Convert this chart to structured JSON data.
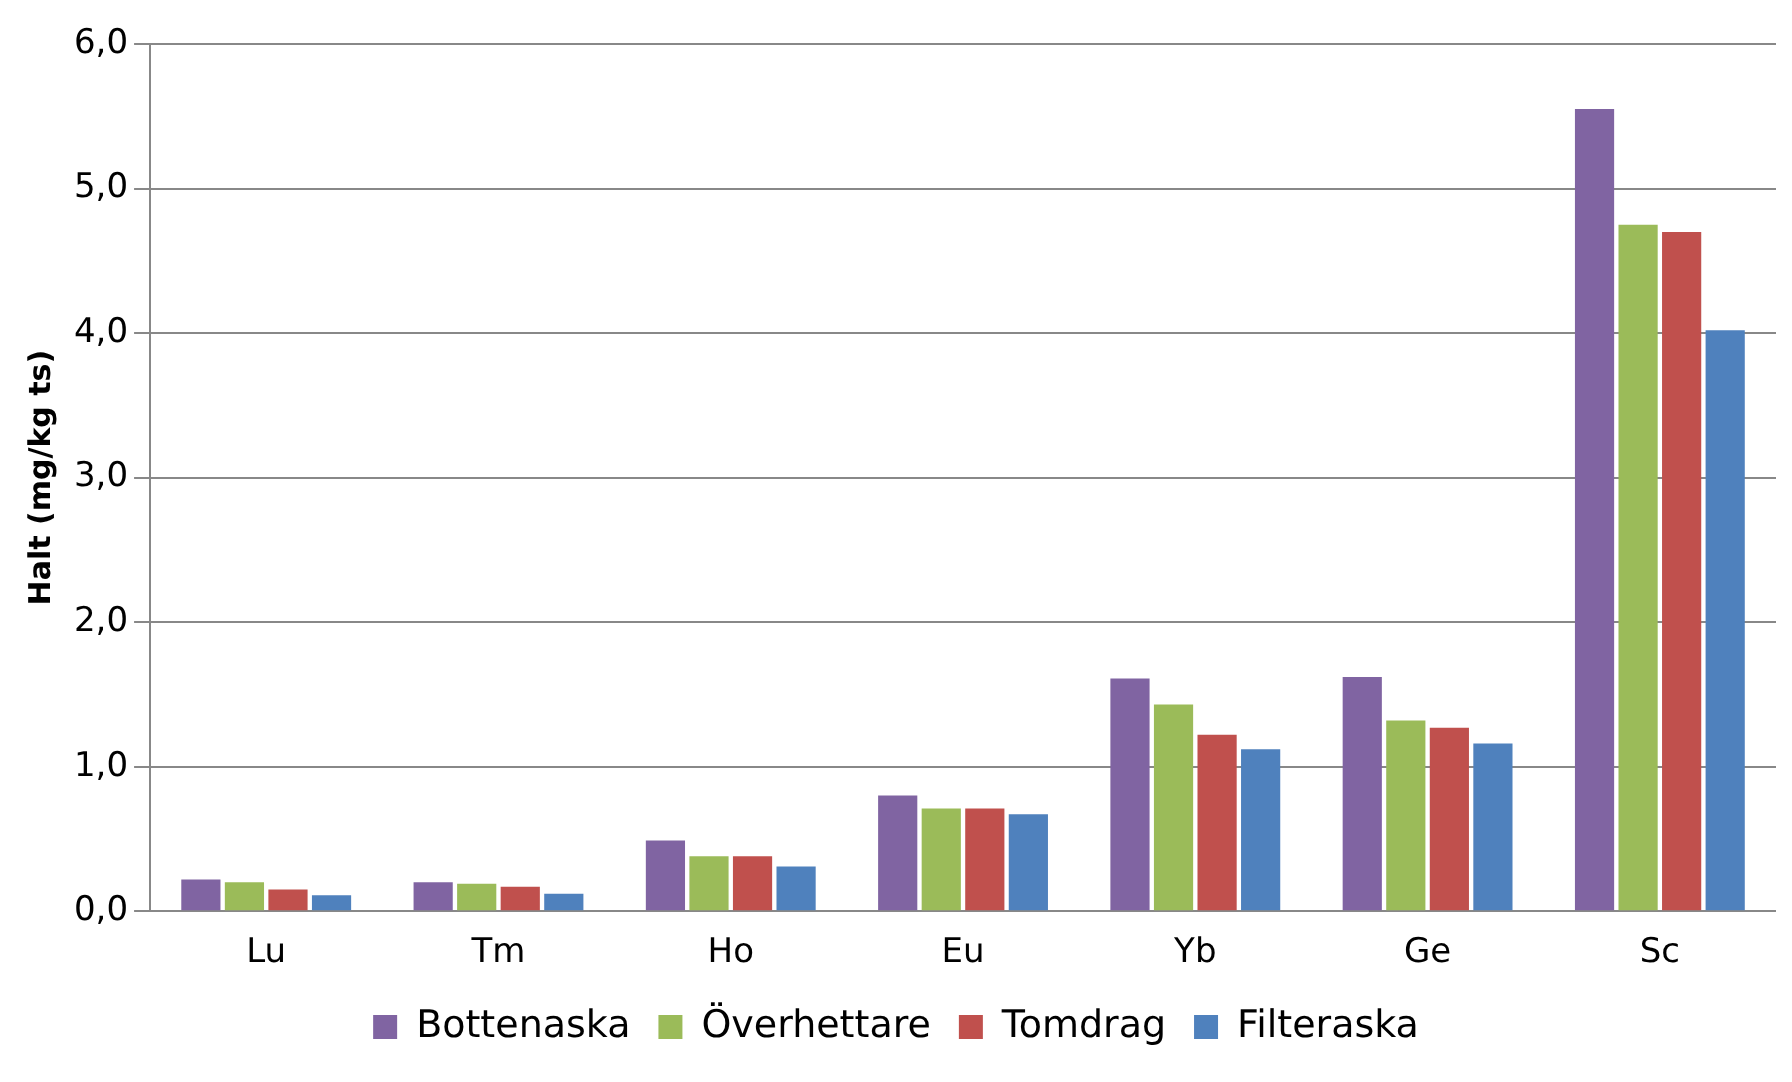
{
  "chart_data": {
    "type": "bar",
    "ylabel": "Halt (mg/kg ts)",
    "categories": [
      "Lu",
      "Tm",
      "Ho",
      "Eu",
      "Yb",
      "Ge",
      "Sc"
    ],
    "series": [
      {
        "name": "Bottenaska",
        "color": "#8064a2",
        "values": [
          0.22,
          0.2,
          0.49,
          0.8,
          1.61,
          1.62,
          5.55
        ]
      },
      {
        "name": "Överhettare",
        "color": "#9bbb59",
        "values": [
          0.2,
          0.19,
          0.38,
          0.71,
          1.43,
          1.32,
          4.75
        ]
      },
      {
        "name": "Tomdrag",
        "color": "#c0504d",
        "values": [
          0.15,
          0.17,
          0.38,
          0.71,
          1.22,
          1.27,
          4.7
        ]
      },
      {
        "name": "Filteraska",
        "color": "#4f81bd",
        "values": [
          0.11,
          0.12,
          0.31,
          0.67,
          1.12,
          1.16,
          4.02
        ]
      }
    ],
    "ylim": [
      0,
      6
    ],
    "yticks": [
      {
        "value": 0,
        "label": "0,0"
      },
      {
        "value": 1,
        "label": "1,0"
      },
      {
        "value": 2,
        "label": "2,0"
      },
      {
        "value": 3,
        "label": "3,0"
      },
      {
        "value": 4,
        "label": "4,0"
      },
      {
        "value": 5,
        "label": "5,0"
      },
      {
        "value": 6,
        "label": "6,0"
      }
    ],
    "grid": "y",
    "legend": "bottom"
  }
}
